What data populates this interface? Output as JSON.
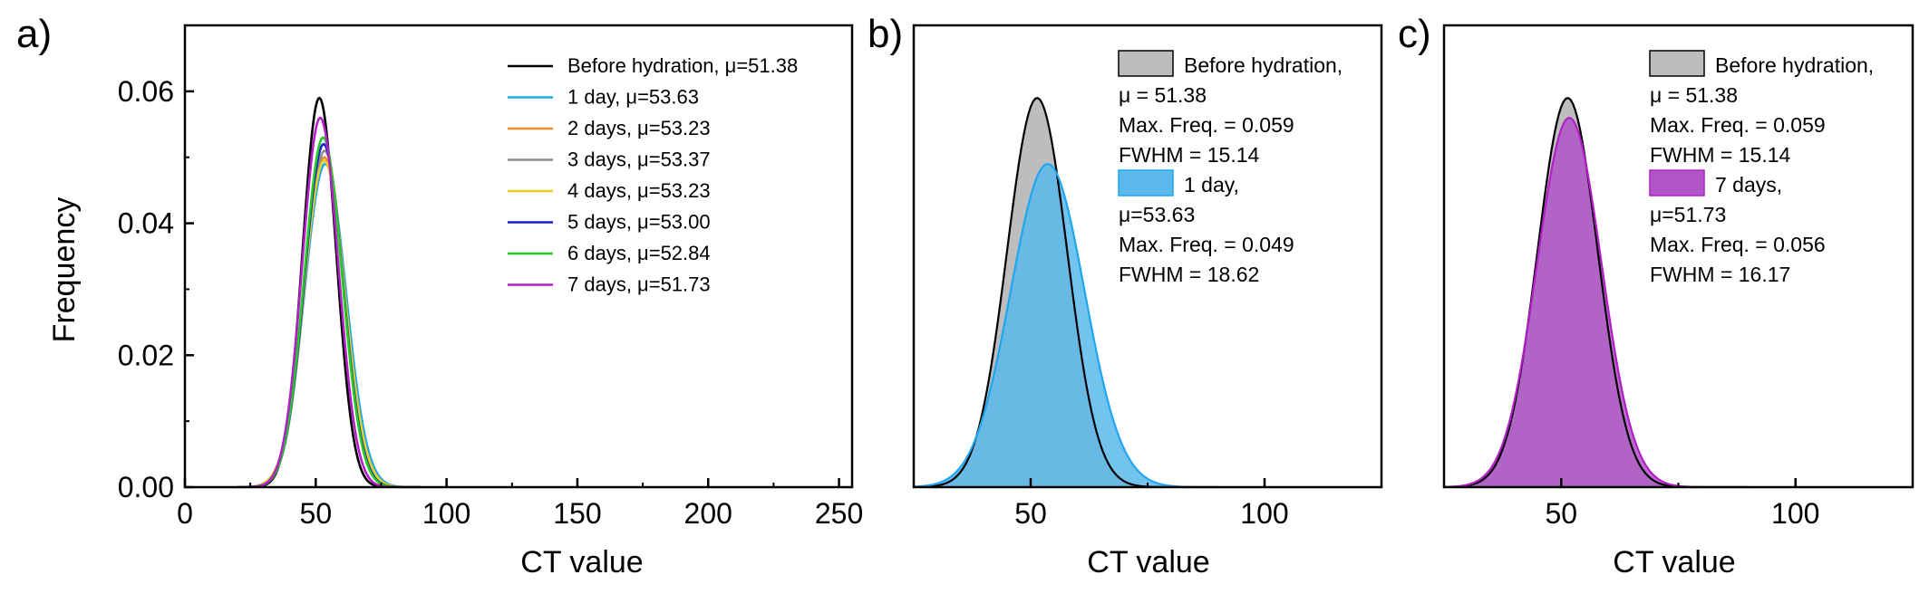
{
  "figure": {
    "panels": [
      {
        "label": "a)",
        "xlabel": "CT value",
        "ylabel": "Frequency"
      },
      {
        "label": "b)",
        "xlabel": "CT value"
      },
      {
        "label": "c)",
        "xlabel": "CT value"
      }
    ]
  },
  "chart_data": [
    {
      "type": "line",
      "panel": "a)",
      "xlabel": "CT value",
      "ylabel": "Frequency",
      "xlim": [
        0,
        255
      ],
      "ylim": [
        0,
        0.07
      ],
      "xticks": [
        0,
        50,
        100,
        150,
        200,
        250
      ],
      "yticks": [
        0.0,
        0.02,
        0.04,
        0.06
      ],
      "ytick_labels": [
        "0.00",
        "0.02",
        "0.04",
        "0.06"
      ],
      "legend_position": "top-right",
      "series": [
        {
          "name": "Before hydration, μ=51.38",
          "mu": 51.38,
          "peak": 0.059,
          "fwhm": 15.14,
          "color": "#000000"
        },
        {
          "name": "1 day, μ=53.63",
          "mu": 53.63,
          "peak": 0.049,
          "fwhm": 18.62,
          "color": "#1ea7f0"
        },
        {
          "name": "2 days, μ=53.23",
          "mu": 53.23,
          "peak": 0.05,
          "fwhm": 18.0,
          "color": "#f28a2e"
        },
        {
          "name": "3 days, μ=53.37",
          "mu": 53.37,
          "peak": 0.051,
          "fwhm": 17.6,
          "color": "#8c8c8c"
        },
        {
          "name": "4 days, μ=53.23",
          "mu": 53.23,
          "peak": 0.0495,
          "fwhm": 18.2,
          "color": "#e8d21e"
        },
        {
          "name": "5 days, μ=53.00",
          "mu": 53.0,
          "peak": 0.052,
          "fwhm": 17.2,
          "color": "#1a1ad6"
        },
        {
          "name": "6 days, μ=52.84",
          "mu": 52.84,
          "peak": 0.053,
          "fwhm": 17.0,
          "color": "#22cc22"
        },
        {
          "name": "7 days, μ=51.73",
          "mu": 51.73,
          "peak": 0.056,
          "fwhm": 16.17,
          "color": "#b41ec8"
        }
      ]
    },
    {
      "type": "area",
      "panel": "b)",
      "xlabel": "CT value",
      "xlim": [
        25,
        125
      ],
      "ylim": [
        0,
        0.07
      ],
      "xticks": [
        50,
        100
      ],
      "legend_position": "top-right",
      "series": [
        {
          "name": "Before hydration,",
          "mu": 51.38,
          "peak": 0.059,
          "fwhm": 15.14,
          "fill": "#bdbdbd",
          "line": "#000000"
        },
        {
          "name": "1 day,",
          "mu": 53.63,
          "peak": 0.049,
          "fwhm": 18.62,
          "fill": "#5ab8ec",
          "line": "#1ea7f0"
        }
      ],
      "annotations": [
        [
          "Before hydration,",
          "μ = 51.38",
          "Max. Freq. = 0.059",
          "FWHM = 15.14"
        ],
        [
          "1 day,",
          "μ=53.63",
          "Max. Freq. = 0.049",
          "FWHM = 18.62"
        ]
      ]
    },
    {
      "type": "area",
      "panel": "c)",
      "xlabel": "CT value",
      "xlim": [
        25,
        125
      ],
      "ylim": [
        0,
        0.07
      ],
      "xticks": [
        50,
        100
      ],
      "legend_position": "top-right",
      "series": [
        {
          "name": "Before hydration,",
          "mu": 51.38,
          "peak": 0.059,
          "fwhm": 15.14,
          "fill": "#bdbdbd",
          "line": "#000000"
        },
        {
          "name": "7 days,",
          "mu": 51.73,
          "peak": 0.056,
          "fwhm": 16.17,
          "fill": "#b055c8",
          "line": "#b41ec8"
        }
      ],
      "annotations": [
        [
          "Before hydration,",
          "μ = 51.38",
          "Max. Freq. = 0.059",
          "FWHM = 15.14"
        ],
        [
          "7 days,",
          "μ=51.73",
          "Max. Freq. = 0.056",
          "FWHM = 16.17"
        ]
      ]
    }
  ]
}
